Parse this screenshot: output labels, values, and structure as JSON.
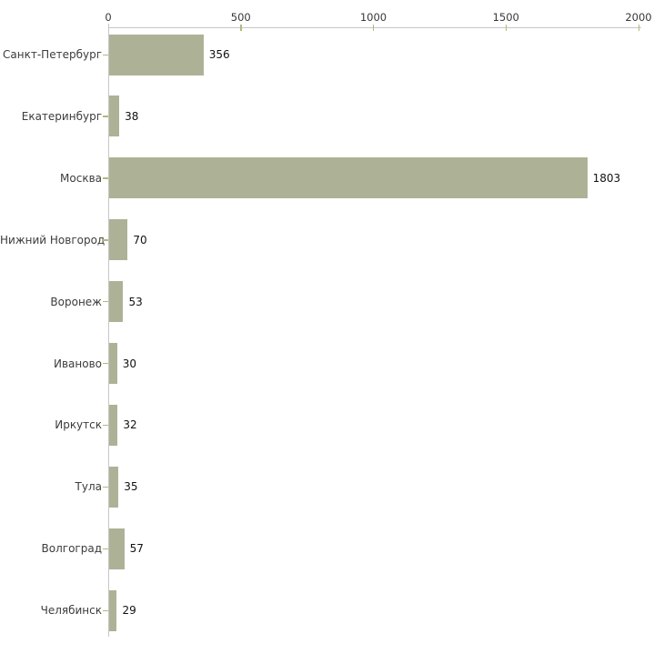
{
  "chart_data": {
    "type": "bar",
    "orientation": "horizontal",
    "title": "",
    "xlabel": "",
    "ylabel": "",
    "categories": [
      "Санкт-Петербург",
      "Екатеринбург",
      "Москва",
      "Нижний Новгород",
      "Воронеж",
      "Иваново",
      "Иркутск",
      "Тула",
      "Волгоград",
      "Челябинск"
    ],
    "values": [
      356,
      38,
      1803,
      70,
      53,
      30,
      32,
      35,
      57,
      29
    ],
    "value_labels": [
      "356",
      "38",
      "1803",
      "70",
      "53",
      "30",
      "32",
      "35",
      "57",
      "29"
    ],
    "xlim": [
      0,
      2000
    ],
    "x_ticks": [
      0,
      500,
      1000,
      1500,
      2000
    ],
    "x_tick_labels": [
      "0",
      "500",
      "1000",
      "1500",
      "2000"
    ],
    "x_axis_position": "top",
    "grid": false,
    "legend": false,
    "colors": {
      "bar_fill": "#adb296",
      "axis_line": "#c6c6c6",
      "tick_mark": "#b4b878",
      "category_text": "#3c3c3c",
      "value_text": "#111111",
      "background": "#ffffff"
    }
  }
}
